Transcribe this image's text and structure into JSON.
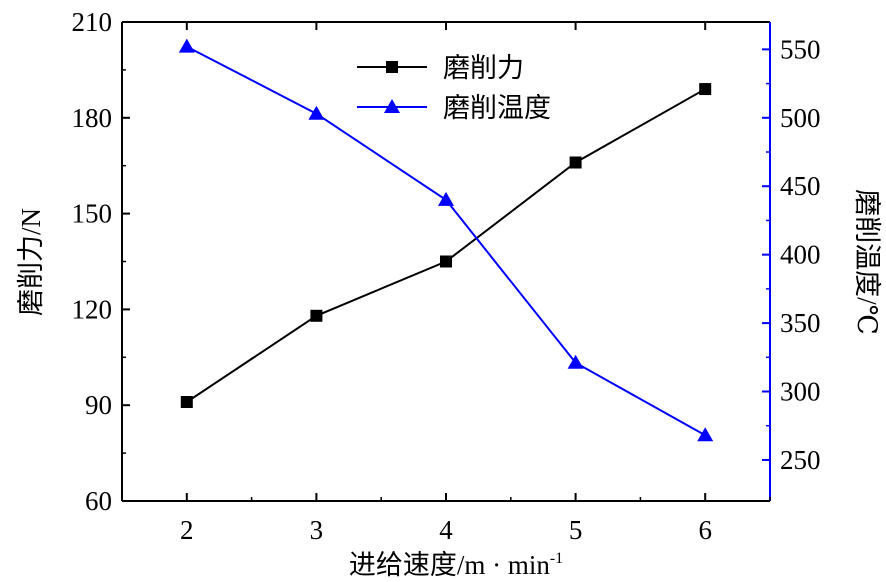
{
  "chart_data": {
    "type": "line",
    "xlabel": "进给速度/m · min",
    "xlabel_sup": "-1",
    "ylabel_left": "磨削力/N",
    "ylabel_right": "磨削温度/℃",
    "x": [
      2,
      3,
      4,
      5,
      6
    ],
    "xlim": [
      1.5,
      6.5
    ],
    "y_left_lim": [
      60,
      210
    ],
    "y_left_ticks": [
      60,
      90,
      120,
      150,
      180,
      210
    ],
    "y_right_lim": [
      220,
      570
    ],
    "y_right_ticks": [
      250,
      300,
      350,
      400,
      450,
      500,
      550
    ],
    "legend_position": "top-center",
    "series": [
      {
        "name": "磨削力",
        "axis": "left",
        "values": [
          91,
          118,
          135,
          166,
          189
        ],
        "color": "#000000",
        "marker": "square"
      },
      {
        "name": "磨削温度",
        "axis": "right",
        "values": [
          552,
          503,
          440,
          321,
          268
        ],
        "color": "#0000ff",
        "marker": "triangle"
      }
    ]
  }
}
